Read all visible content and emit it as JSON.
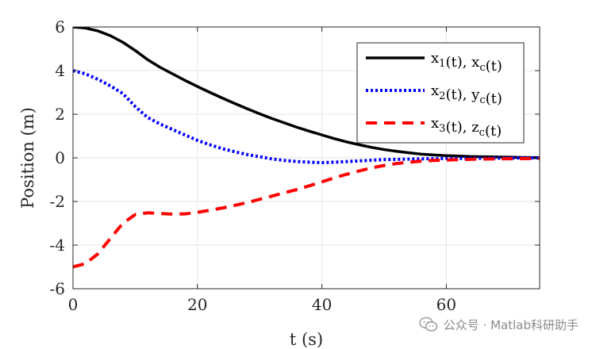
{
  "chart_data": {
    "type": "line",
    "title": "",
    "xlabel": "t (s)",
    "ylabel": "Position (m)",
    "xlim": [
      0,
      75
    ],
    "ylim": [
      -6,
      6
    ],
    "xticks": [
      0,
      20,
      40,
      60
    ],
    "yticks": [
      -6,
      -4,
      -2,
      0,
      2,
      4,
      6
    ],
    "xtick_labels": [
      "0",
      "20",
      "40",
      "60"
    ],
    "ytick_labels": [
      "-6",
      "-4",
      "-2",
      "0",
      "2",
      "4",
      "6"
    ],
    "grid": true,
    "legend_position": "top-right",
    "series": [
      {
        "name": "x1(t), xc(t)",
        "legend": {
          "a": "x",
          "a_sub": "1",
          "b": "(t), x",
          "b_sub": "c",
          "c": "(t)"
        },
        "color": "#000000",
        "style": "solid",
        "x": [
          0,
          2,
          4,
          6,
          8,
          10,
          12,
          14,
          16,
          18,
          20,
          22,
          24,
          26,
          28,
          30,
          32,
          34,
          36,
          38,
          40,
          42,
          44,
          46,
          48,
          50,
          52,
          54,
          56,
          58,
          60,
          62,
          64,
          66,
          68,
          70,
          72,
          75
        ],
        "y": [
          6.0,
          5.95,
          5.82,
          5.6,
          5.3,
          4.92,
          4.5,
          4.15,
          3.85,
          3.55,
          3.27,
          3.0,
          2.74,
          2.49,
          2.25,
          2.02,
          1.8,
          1.6,
          1.4,
          1.22,
          1.05,
          0.88,
          0.73,
          0.6,
          0.48,
          0.38,
          0.3,
          0.23,
          0.17,
          0.13,
          0.1,
          0.08,
          0.06,
          0.05,
          0.04,
          0.03,
          0.02,
          0.01
        ]
      },
      {
        "name": "x2(t), yc(t)",
        "legend": {
          "a": "x",
          "a_sub": "2",
          "b": "(t), y",
          "b_sub": "c",
          "c": "(t)"
        },
        "color": "#0000ff",
        "style": "dotted",
        "x": [
          0,
          2,
          4,
          6,
          8,
          10,
          12,
          14,
          16,
          18,
          20,
          22,
          24,
          26,
          28,
          30,
          32,
          34,
          36,
          38,
          40,
          42,
          44,
          46,
          48,
          50,
          55,
          60,
          65,
          70,
          75
        ],
        "y": [
          4.0,
          3.85,
          3.6,
          3.3,
          2.95,
          2.35,
          1.85,
          1.55,
          1.3,
          1.05,
          0.8,
          0.6,
          0.42,
          0.28,
          0.15,
          0.05,
          -0.05,
          -0.12,
          -0.17,
          -0.2,
          -0.22,
          -0.2,
          -0.17,
          -0.14,
          -0.11,
          -0.08,
          -0.05,
          -0.03,
          -0.02,
          -0.01,
          0.0
        ]
      },
      {
        "name": "x3(t), zc(t)",
        "legend": {
          "a": "x",
          "a_sub": "3",
          "b": "(t), z",
          "b_sub": "c",
          "c": "(t)"
        },
        "color": "#ff0000",
        "style": "dashed",
        "x": [
          0,
          2,
          4,
          6,
          8,
          10,
          12,
          14,
          16,
          18,
          20,
          22,
          24,
          26,
          28,
          30,
          32,
          34,
          36,
          38,
          40,
          42,
          44,
          46,
          48,
          50,
          52,
          54,
          56,
          58,
          60,
          62,
          65,
          70,
          75
        ],
        "y": [
          -5.0,
          -4.85,
          -4.4,
          -3.7,
          -3.0,
          -2.6,
          -2.52,
          -2.55,
          -2.58,
          -2.57,
          -2.5,
          -2.4,
          -2.3,
          -2.18,
          -2.05,
          -1.9,
          -1.75,
          -1.6,
          -1.45,
          -1.28,
          -1.1,
          -0.92,
          -0.75,
          -0.6,
          -0.46,
          -0.35,
          -0.26,
          -0.2,
          -0.15,
          -0.12,
          -0.1,
          -0.08,
          -0.06,
          -0.04,
          -0.03
        ]
      }
    ]
  },
  "watermark": {
    "text": "公众号 · Matlab科研助手",
    "icon": "wechat-icon"
  }
}
